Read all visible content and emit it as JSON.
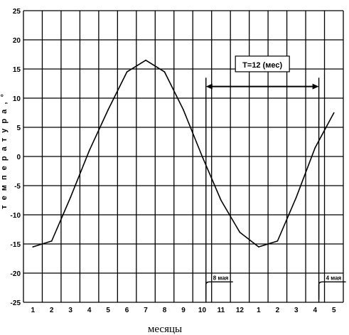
{
  "chart_data": {
    "type": "line",
    "xlabel": "месяцы",
    "ylabel": "т е м п е р а т у р а ,  °",
    "ylim": [
      -25,
      25
    ],
    "y_ticks": [
      "25",
      "20",
      "15",
      "10",
      "5",
      "0",
      "-5",
      "-10",
      "-15",
      "-20",
      "-25"
    ],
    "x_tick_labels": [
      "1",
      "2",
      "3",
      "4",
      "5",
      "6",
      "7",
      "8",
      "9",
      "10",
      "11",
      "12",
      "1",
      "2",
      "3",
      "4",
      "5"
    ],
    "grid": true,
    "series": [
      {
        "x": [
          1,
          2,
          3,
          4,
          5,
          6,
          7,
          8,
          9,
          10,
          11,
          12,
          13,
          14,
          15,
          16,
          17
        ],
        "values": [
          -15.5,
          -14.5,
          -7,
          1,
          8,
          14.5,
          16.5,
          14.5,
          8,
          0,
          -7.5,
          -13,
          -15.5,
          -14.5,
          -7,
          1.5,
          7.5
        ],
        "color": "#000000"
      }
    ],
    "annotations": {
      "period_label": "T=12 (мес)",
      "period_from_x": 10.2,
      "period_to_x": 16.2,
      "marker_left_label": "8 мая",
      "marker_left_x": 10.2,
      "marker_right_label": "4 мая",
      "marker_right_x": 16.2
    }
  }
}
